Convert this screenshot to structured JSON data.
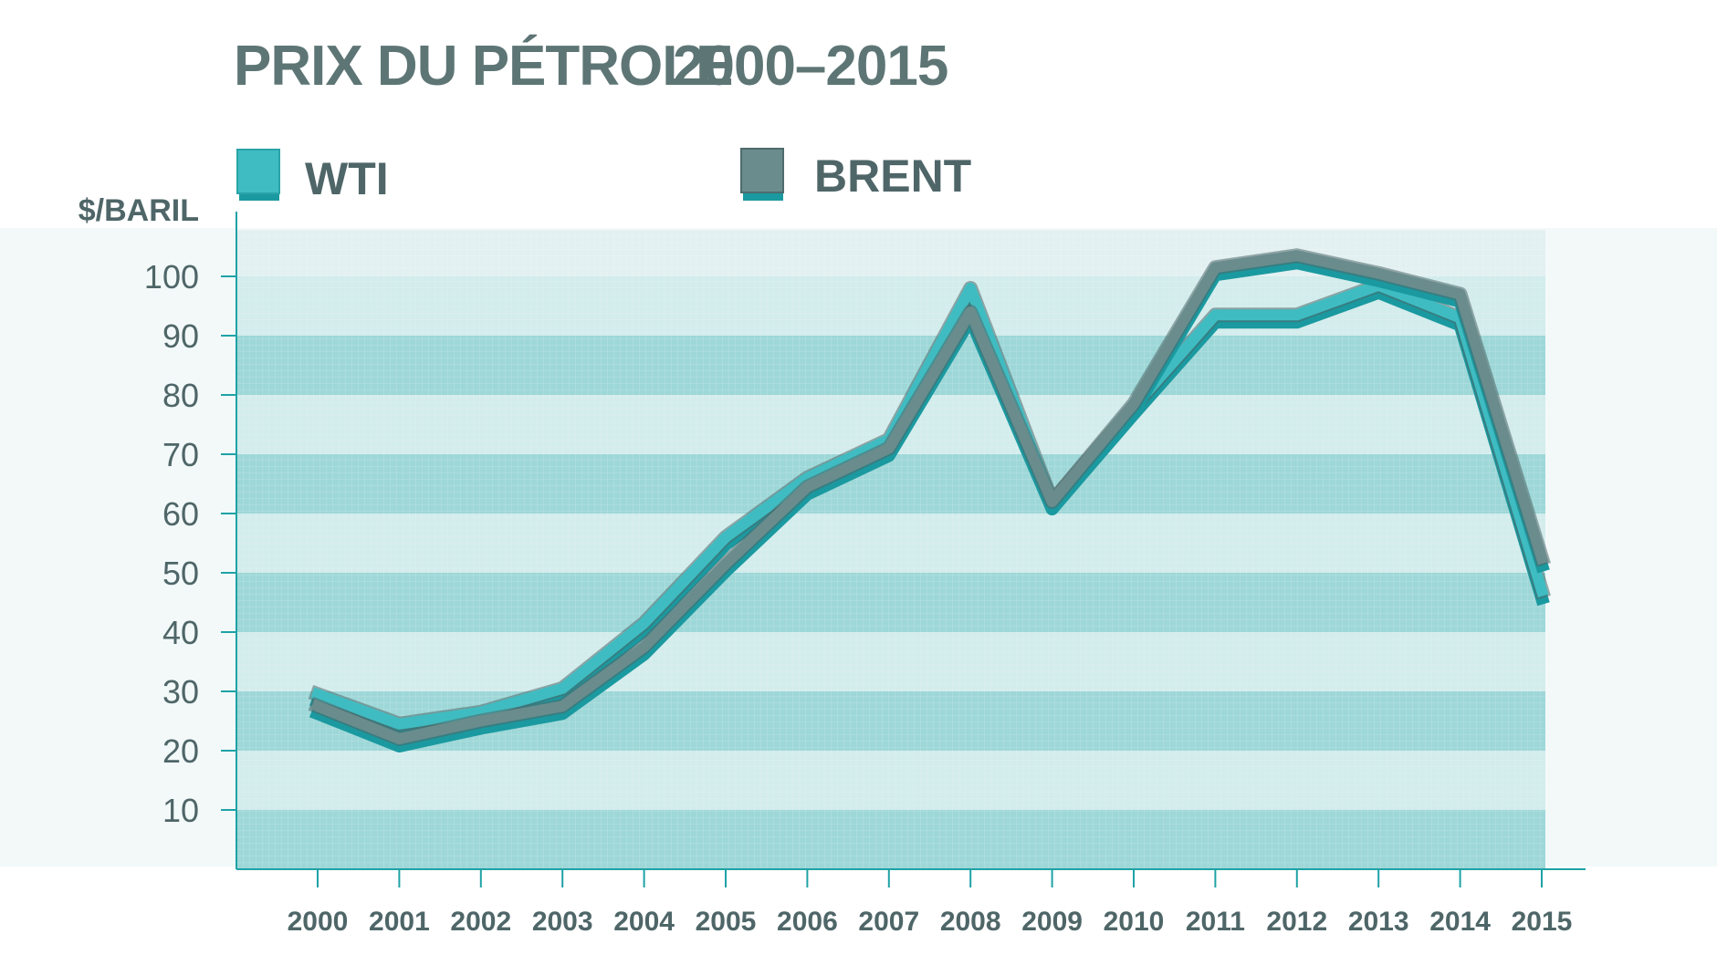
{
  "chart_data": {
    "type": "line",
    "title": "PRIX DU PÉTROLE",
    "title_years": "2000–2015",
    "ylabel": "$/BARIL",
    "ylim": [
      0,
      107
    ],
    "yticks": [
      10,
      20,
      30,
      40,
      50,
      60,
      70,
      80,
      90,
      100
    ],
    "categories": [
      "2000",
      "2001",
      "2002",
      "2003",
      "2004",
      "2005",
      "2006",
      "2007",
      "2008",
      "2009",
      "2010",
      "2011",
      "2012",
      "2013",
      "2014",
      "2015"
    ],
    "grid": true,
    "legend_position": "top",
    "series": [
      {
        "name": "WTI",
        "color": "#3fbcc1",
        "shadow": "#1a9aa0",
        "values": [
          29.5,
          24.5,
          26.5,
          30.5,
          41.5,
          56,
          66,
          72.5,
          98,
          62,
          78,
          93.5,
          93.5,
          98.5,
          93,
          47
        ]
      },
      {
        "name": "BRENT",
        "color": "#6a8c8d",
        "shadow": "#1a9aa0",
        "values": [
          27.5,
          22,
          25,
          27.5,
          37.5,
          51.5,
          64.5,
          71,
          94,
          62,
          78.5,
          101.5,
          103.5,
          100.5,
          97,
          52.5
        ]
      }
    ]
  }
}
